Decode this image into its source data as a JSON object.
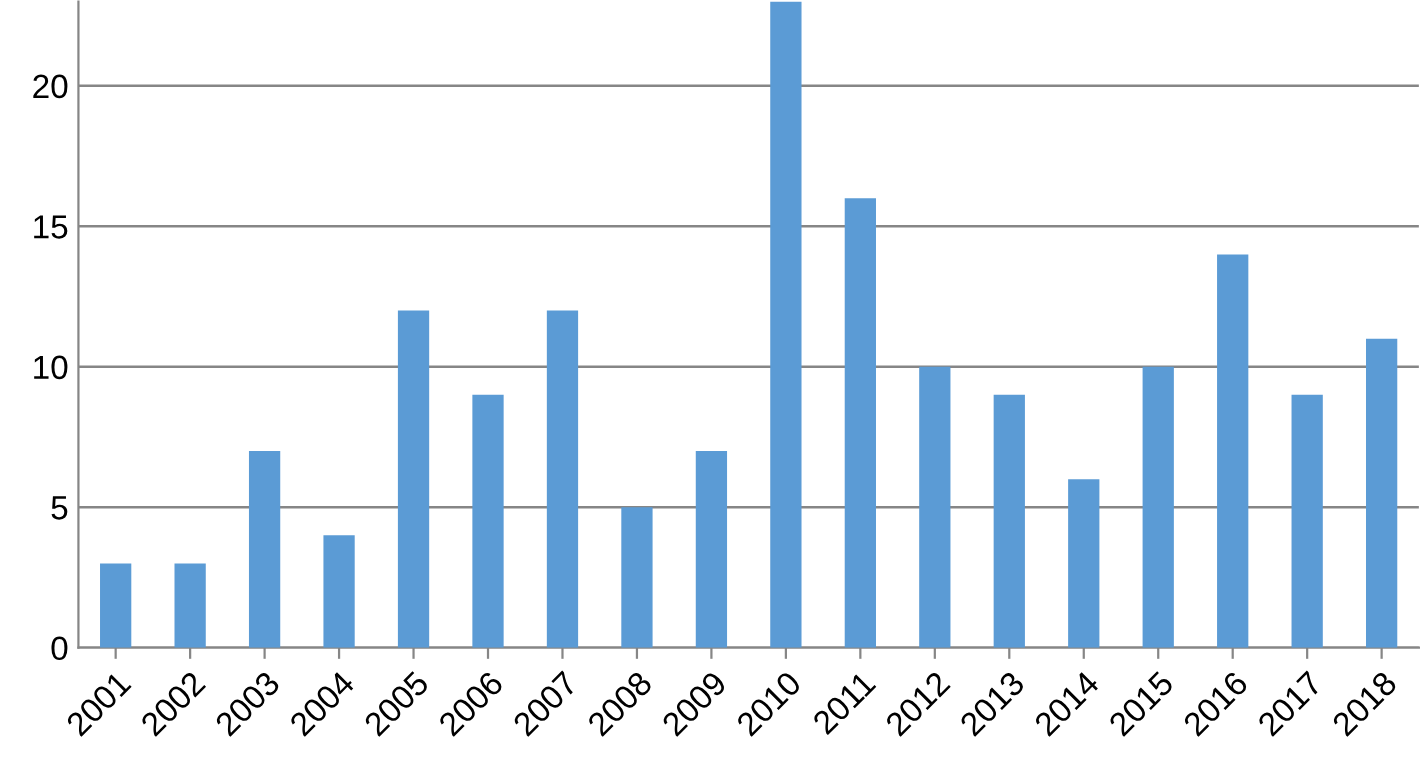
{
  "chart_data": {
    "type": "bar",
    "categories": [
      "2001",
      "2002",
      "2003",
      "2004",
      "2005",
      "2006",
      "2007",
      "2008",
      "2009",
      "2010",
      "2011",
      "2012",
      "2013",
      "2014",
      "2015",
      "2016",
      "2017",
      "2018"
    ],
    "values": [
      3,
      3,
      7,
      4,
      12,
      9,
      12,
      5,
      7,
      23,
      16,
      10,
      9,
      6,
      10,
      14,
      9,
      11
    ],
    "color": "#5b9bd5",
    "ylim": [
      0,
      23
    ],
    "yticks": [
      0,
      5,
      10,
      15,
      20
    ],
    "grid": "y"
  }
}
